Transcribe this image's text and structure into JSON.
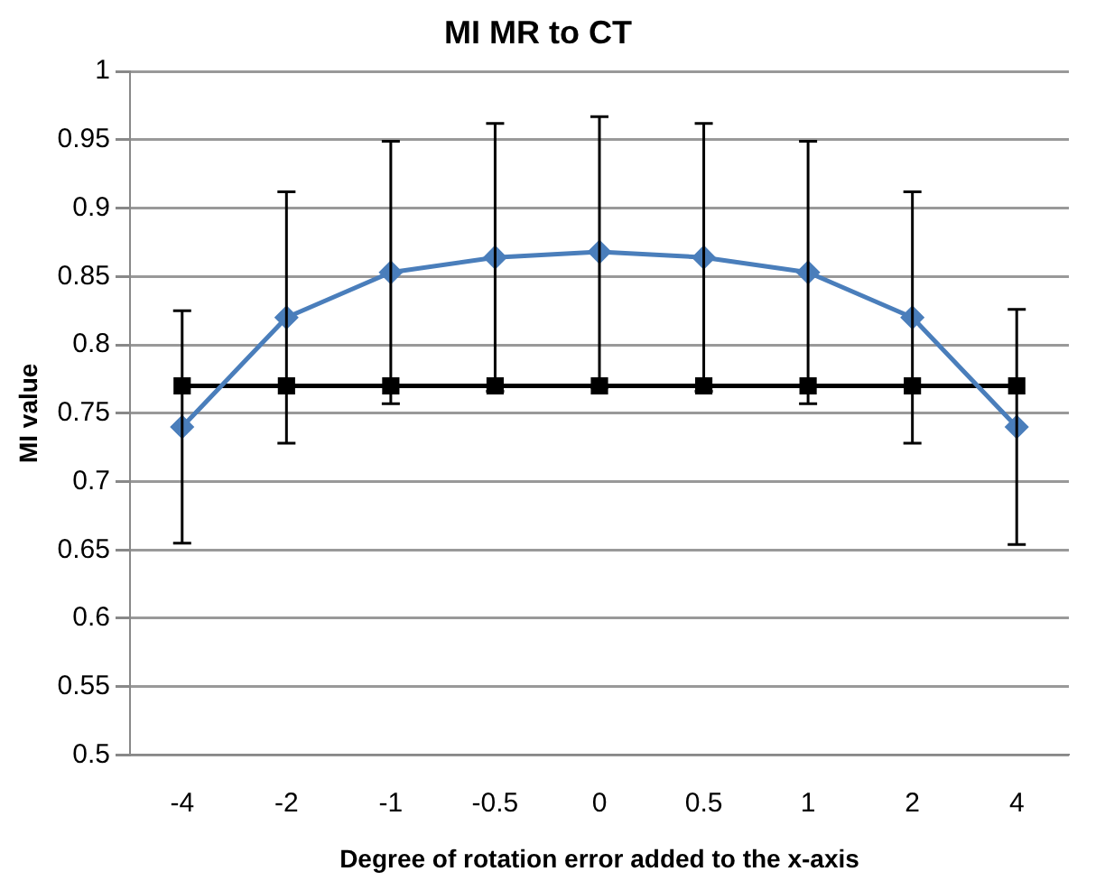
{
  "chart_data": {
    "type": "line",
    "title": "MI MR to CT",
    "xlabel": "Degree of rotation error added to the x-axis",
    "ylabel": "MI value",
    "categories": [
      "-4",
      "-2",
      "-1",
      "-0.5",
      "0",
      "0.5",
      "1",
      "2",
      "4"
    ],
    "series": [
      {
        "color": "#4a7ebb",
        "marker": "diamond",
        "values": [
          0.74,
          0.82,
          0.853,
          0.864,
          0.868,
          0.864,
          0.853,
          0.82,
          0.74
        ],
        "errors": [
          0.085,
          0.092,
          0.096,
          0.098,
          0.099,
          0.098,
          0.096,
          0.092,
          0.086
        ]
      },
      {
        "color": "#000000",
        "marker": "square",
        "values": [
          0.77,
          0.77,
          0.77,
          0.77,
          0.77,
          0.77,
          0.77,
          0.77,
          0.77
        ]
      }
    ],
    "ylim": [
      0.5,
      1
    ],
    "yticks": [
      0.5,
      0.55,
      0.6,
      0.65,
      0.7,
      0.75,
      0.8,
      0.85,
      0.9,
      0.95,
      1
    ],
    "grid": "y",
    "legend": false
  }
}
